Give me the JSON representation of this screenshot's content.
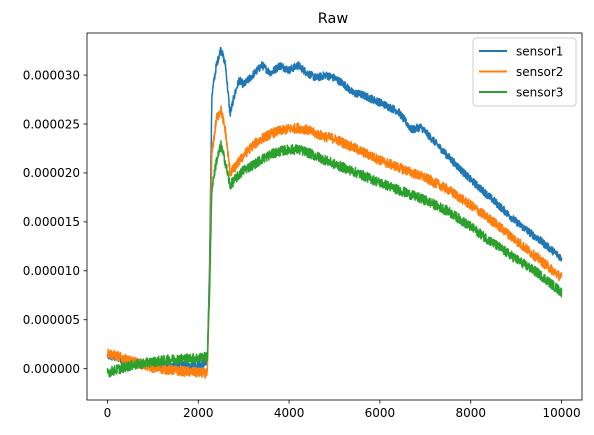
{
  "chart_data": {
    "type": "line",
    "title": "Raw",
    "xlabel": "",
    "ylabel": "",
    "xlim": [
      -450,
      10450
    ],
    "ylim": [
      -3.2e-06,
      3.43e-05
    ],
    "xticks": [
      0,
      2000,
      4000,
      6000,
      8000,
      10000
    ],
    "xtick_labels": [
      "0",
      "2000",
      "4000",
      "6000",
      "8000",
      "10000"
    ],
    "yticks": [
      0,
      5e-06,
      1e-05,
      1.5e-05,
      2e-05,
      2.5e-05,
      3e-05
    ],
    "ytick_labels": [
      "0.000000",
      "0.000005",
      "0.000010",
      "0.000015",
      "0.000020",
      "0.000025",
      "0.000030"
    ],
    "grid": false,
    "legend_position": "top-right",
    "noise_amplitude": [
      4e-07,
      5e-07,
      5e-07
    ],
    "series": [
      {
        "name": "sensor1",
        "color": "#1f77b4",
        "x": [
          0,
          200,
          500,
          1000,
          1500,
          2000,
          2200,
          2250,
          2300,
          2400,
          2500,
          2600,
          2700,
          2800,
          2900,
          3000,
          3200,
          3400,
          3600,
          3800,
          4000,
          4200,
          4400,
          4600,
          4800,
          5000,
          5200,
          5400,
          5600,
          6000,
          6400,
          6700,
          6900,
          7200,
          7600,
          8000,
          8500,
          9000,
          9500,
          10000
        ],
        "y": [
          1.3e-06,
          1.1e-06,
          8e-07,
          4e-07,
          3e-07,
          4e-07,
          5e-07,
          1.1e-05,
          2.8e-05,
          3.1e-05,
          3.27e-05,
          3.1e-05,
          2.6e-05,
          2.8e-05,
          2.95e-05,
          2.9e-05,
          3e-05,
          3.1e-05,
          3.02e-05,
          3.1e-05,
          3.05e-05,
          3.1e-05,
          3.02e-05,
          2.97e-05,
          3e-05,
          2.97e-05,
          2.91e-05,
          2.82e-05,
          2.8e-05,
          2.72e-05,
          2.63e-05,
          2.44e-05,
          2.47e-05,
          2.32e-05,
          2.12e-05,
          1.93e-05,
          1.72e-05,
          1.5e-05,
          1.32e-05,
          1.13e-05
        ]
      },
      {
        "name": "sensor2",
        "color": "#ff7f0e",
        "x": [
          0,
          200,
          500,
          1000,
          1500,
          2000,
          2200,
          2250,
          2300,
          2400,
          2500,
          2600,
          2700,
          2800,
          2900,
          3000,
          3200,
          3400,
          3600,
          3800,
          4000,
          4200,
          4400,
          4600,
          4800,
          5000,
          5500,
          6000,
          6500,
          7000,
          7500,
          8000,
          8500,
          9000,
          9500,
          10000
        ],
        "y": [
          1.6e-06,
          1.3e-06,
          8e-07,
          1e-07,
          -2e-07,
          -4e-07,
          -5e-07,
          9e-06,
          2.2e-05,
          2.55e-05,
          2.65e-05,
          2.42e-05,
          2e-05,
          2.05e-05,
          2.12e-05,
          2.18e-05,
          2.28e-05,
          2.35e-05,
          2.4e-05,
          2.43e-05,
          2.45e-05,
          2.46e-05,
          2.44e-05,
          2.4e-05,
          2.37e-05,
          2.35e-05,
          2.24e-05,
          2.13e-05,
          2.04e-05,
          1.95e-05,
          1.83e-05,
          1.67e-05,
          1.5e-05,
          1.31e-05,
          1.12e-05,
          9.3e-06
        ]
      },
      {
        "name": "sensor3",
        "color": "#2ca02c",
        "x": [
          0,
          200,
          500,
          1000,
          1500,
          2000,
          2200,
          2250,
          2300,
          2400,
          2500,
          2600,
          2700,
          2800,
          2900,
          3000,
          3200,
          3400,
          3600,
          3800,
          4000,
          4200,
          4400,
          4600,
          4800,
          5000,
          5500,
          6000,
          6500,
          7000,
          7500,
          8000,
          8500,
          9000,
          9500,
          10000
        ],
        "y": [
          -4e-07,
          -1e-07,
          3e-07,
          7e-07,
          1e-06,
          1.1e-06,
          1.2e-06,
          8e-06,
          1.85e-05,
          2.12e-05,
          2.28e-05,
          2.1e-05,
          1.87e-05,
          1.93e-05,
          1.98e-05,
          2.03e-05,
          2.08e-05,
          2.14e-05,
          2.19e-05,
          2.22e-05,
          2.24e-05,
          2.24e-05,
          2.21e-05,
          2.17e-05,
          2.13e-05,
          2.09e-05,
          2e-05,
          1.9e-05,
          1.81e-05,
          1.72e-05,
          1.61e-05,
          1.45e-05,
          1.28e-05,
          1.12e-05,
          9.7e-06,
          7.8e-06
        ]
      }
    ]
  }
}
